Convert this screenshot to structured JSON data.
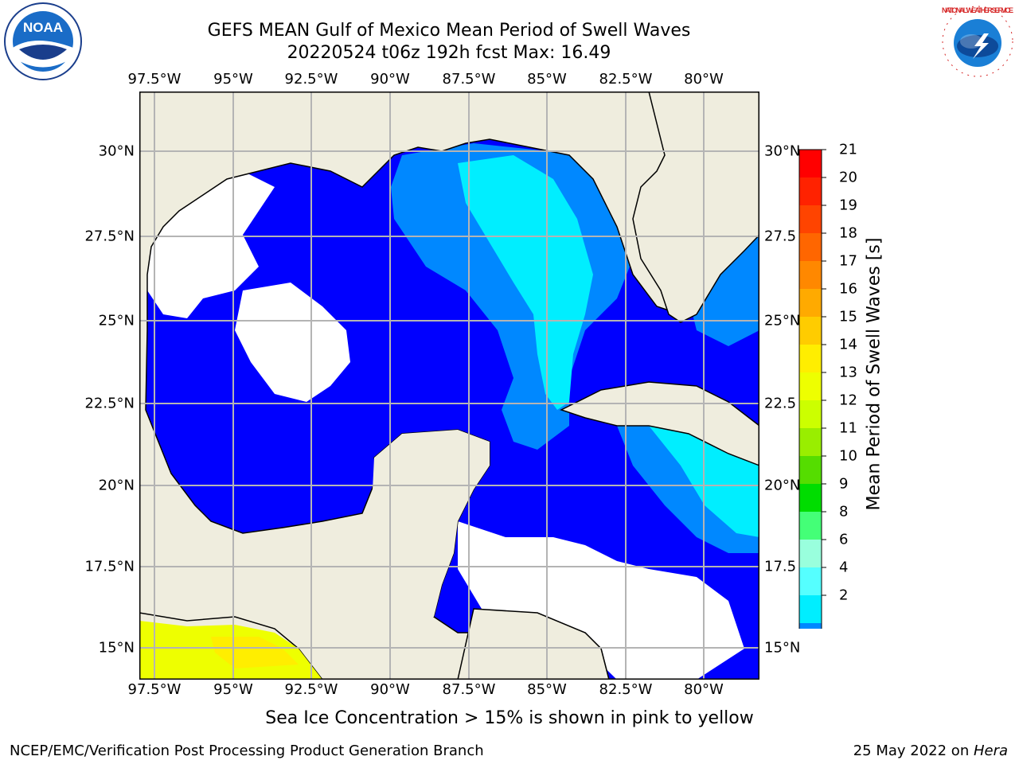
{
  "title_line1": "GEFS MEAN Gulf of Mexico Mean Period of Swell Waves",
  "title_line2": "20220524 t06z 192h fcst   Max: 16.49",
  "lon_labels": [
    "97.5°W",
    "95°W",
    "92.5°W",
    "90°W",
    "87.5°W",
    "85°W",
    "82.5°W",
    "80°W"
  ],
  "lat_labels_left": [
    "30°N",
    "27.5°N",
    "25°N",
    "22.5°N",
    "20°N",
    "17.5°N",
    "15°N"
  ],
  "lat_labels_right": [
    "30°N",
    "27.5",
    "25°N",
    "22.5",
    "20°N",
    "17.5",
    "15°N"
  ],
  "colorbar": {
    "label": "Mean Period of Swell Waves [s]",
    "ticks": [
      "21",
      "20",
      "19",
      "18",
      "17",
      "16",
      "15",
      "14",
      "13",
      "12",
      "11",
      "10",
      "9",
      "8",
      "6",
      "4",
      "2"
    ],
    "colors": [
      "#ff0000",
      "#ff2200",
      "#ff4400",
      "#ff6600",
      "#ff8800",
      "#ffaa00",
      "#ffcc00",
      "#ffee00",
      "#eeff00",
      "#ccff00",
      "#99ee00",
      "#55dd00",
      "#00dd00",
      "#44ff77",
      "#99ffdd",
      "#55ffff",
      "#00eeff",
      "#0088ff"
    ],
    "under_color": "#0000ff"
  },
  "note": "Sea Ice Concentration > 15% is shown in pink to yellow",
  "footer_left": "NCEP/EMC/Verification Post Processing Product Generation Branch",
  "footer_right_prefix": "25 May 2022 on ",
  "footer_right_host": "Hera",
  "logos": {
    "noaa": {
      "text": "NOAA",
      "color": "#1a6cc7"
    },
    "nws": {
      "text": "NATIONAL WEATHER SERVICE",
      "color": "#d62828"
    }
  },
  "map_colors": {
    "land": "#efedde",
    "ocean_low": "#0000ff",
    "ocean_mid": "#0088ff",
    "ocean_high": "#00eeff",
    "ocean_cyan2": "#55ffff",
    "nodata": "#ffffff",
    "grid": "#b4b4b4"
  }
}
